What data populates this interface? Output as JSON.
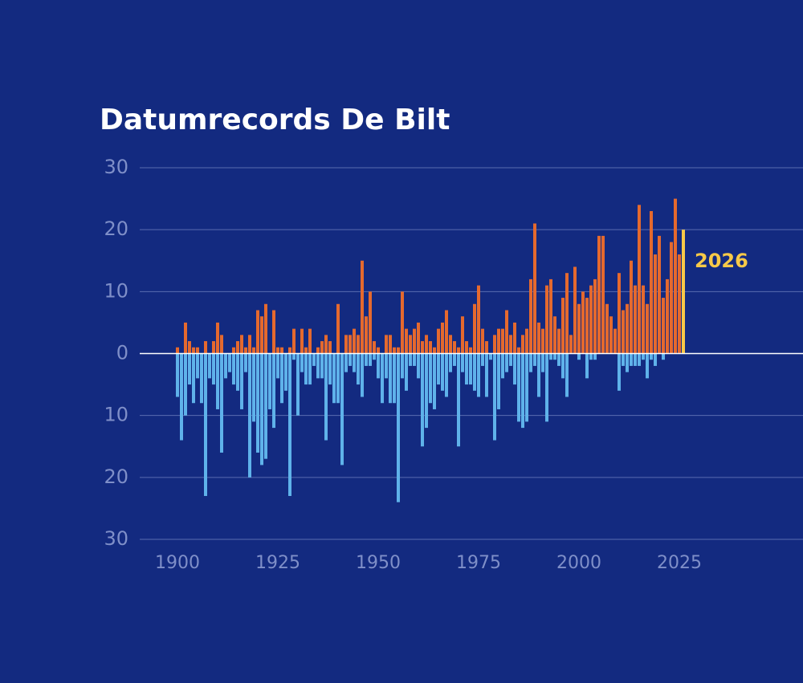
{
  "chart_data": {
    "type": "bar",
    "title": "Datumrecords De Bilt",
    "annotation": "2026",
    "annotation_color": "#f7c948",
    "x": [
      1900,
      1901,
      1902,
      1903,
      1904,
      1905,
      1906,
      1907,
      1908,
      1909,
      1910,
      1911,
      1912,
      1913,
      1914,
      1915,
      1916,
      1917,
      1918,
      1919,
      1920,
      1921,
      1922,
      1923,
      1924,
      1925,
      1926,
      1927,
      1928,
      1929,
      1930,
      1931,
      1932,
      1933,
      1934,
      1935,
      1936,
      1937,
      1938,
      1939,
      1940,
      1941,
      1942,
      1943,
      1944,
      1945,
      1946,
      1947,
      1948,
      1949,
      1950,
      1951,
      1952,
      1953,
      1954,
      1955,
      1956,
      1957,
      1958,
      1959,
      1960,
      1961,
      1962,
      1963,
      1964,
      1965,
      1966,
      1967,
      1968,
      1969,
      1970,
      1971,
      1972,
      1973,
      1974,
      1975,
      1976,
      1977,
      1978,
      1979,
      1980,
      1981,
      1982,
      1983,
      1984,
      1985,
      1986,
      1987,
      1988,
      1989,
      1990,
      1991,
      1992,
      1993,
      1994,
      1995,
      1996,
      1997,
      1998,
      1999,
      2000,
      2001,
      2002,
      2003,
      2004,
      2005,
      2006,
      2007,
      2008,
      2009,
      2010,
      2011,
      2012,
      2013,
      2014,
      2015,
      2016,
      2017,
      2018,
      2019,
      2020,
      2021,
      2022,
      2023,
      2024,
      2025,
      2026
    ],
    "series": [
      {
        "color": "#e5692e",
        "values": [
          1,
          0,
          5,
          2,
          1,
          1,
          0,
          2,
          0,
          2,
          5,
          3,
          0,
          0,
          1,
          2,
          3,
          1,
          3,
          1,
          7,
          6,
          8,
          0,
          7,
          1,
          1,
          0,
          1,
          4,
          0,
          4,
          1,
          4,
          0,
          1,
          2,
          3,
          2,
          0,
          8,
          0,
          3,
          3,
          4,
          3,
          15,
          6,
          10,
          2,
          1,
          0,
          3,
          3,
          1,
          1,
          10,
          4,
          3,
          4,
          5,
          2,
          3,
          2,
          1,
          4,
          5,
          7,
          3,
          2,
          1,
          6,
          2,
          1,
          8,
          11,
          4,
          2,
          0,
          3,
          4,
          4,
          7,
          3,
          5,
          1,
          3,
          4,
          12,
          21,
          5,
          4,
          11,
          12,
          6,
          4,
          9,
          13,
          3,
          14,
          8,
          10,
          9,
          11,
          12,
          19,
          19,
          8,
          6,
          4,
          13,
          7,
          8,
          15,
          11,
          24,
          11,
          8,
          23,
          16,
          19,
          9,
          12,
          18,
          25,
          16,
          null
        ]
      },
      {
        "color": "#5fb2ea",
        "values": [
          -7,
          -14,
          -10,
          -5,
          -8,
          -4,
          -8,
          -23,
          -4,
          -5,
          -9,
          -16,
          -4,
          -3,
          -5,
          -6,
          -9,
          -3,
          -20,
          -11,
          -16,
          -18,
          -17,
          -9,
          -12,
          -4,
          -8,
          -6,
          -23,
          -1,
          -10,
          -3,
          -5,
          -5,
          -2,
          -4,
          -4,
          -14,
          -5,
          -8,
          -8,
          -18,
          -3,
          -2,
          -3,
          -5,
          -7,
          -2,
          -2,
          -1,
          -4,
          -8,
          -4,
          -8,
          -8,
          -24,
          -4,
          -6,
          -2,
          -2,
          -4,
          -15,
          -12,
          -8,
          -9,
          -5,
          -6,
          -7,
          -3,
          -2,
          -15,
          -3,
          -5,
          -5,
          -6,
          -7,
          -2,
          -7,
          -1,
          -14,
          -9,
          -4,
          -3,
          -2,
          -5,
          -11,
          -12,
          -11,
          -3,
          -2,
          -7,
          -3,
          -11,
          -1,
          -1,
          -2,
          -4,
          -7,
          0,
          0,
          -1,
          0,
          -4,
          -1,
          -1,
          0,
          0,
          0,
          0,
          0,
          -6,
          -2,
          -3,
          -2,
          -2,
          -2,
          -1,
          -4,
          -1,
          -2,
          0,
          -1,
          0,
          0,
          0,
          0,
          null
        ]
      },
      {
        "color": "#f7c948",
        "values": [
          null,
          null,
          null,
          null,
          null,
          null,
          null,
          null,
          null,
          null,
          null,
          null,
          null,
          null,
          null,
          null,
          null,
          null,
          null,
          null,
          null,
          null,
          null,
          null,
          null,
          null,
          null,
          null,
          null,
          null,
          null,
          null,
          null,
          null,
          null,
          null,
          null,
          null,
          null,
          null,
          null,
          null,
          null,
          null,
          null,
          null,
          null,
          null,
          null,
          null,
          null,
          null,
          null,
          null,
          null,
          null,
          null,
          null,
          null,
          null,
          null,
          null,
          null,
          null,
          null,
          null,
          null,
          null,
          null,
          null,
          null,
          null,
          null,
          null,
          null,
          null,
          null,
          null,
          null,
          null,
          null,
          null,
          null,
          null,
          null,
          null,
          null,
          null,
          null,
          null,
          null,
          null,
          null,
          null,
          null,
          null,
          null,
          null,
          null,
          null,
          null,
          null,
          null,
          null,
          null,
          null,
          null,
          null,
          null,
          null,
          null,
          null,
          null,
          null,
          null,
          null,
          null,
          null,
          null,
          null,
          null,
          null,
          null,
          null,
          null,
          null,
          20
        ]
      }
    ],
    "xlim": [
      1890.6,
      2055.8
    ],
    "xticks": [
      1900,
      1925,
      1950,
      1975,
      2000,
      2025
    ],
    "ylim": [
      -30,
      30
    ],
    "yticks": [
      30,
      20,
      10,
      0,
      {
        "value": -10,
        "label": "10"
      },
      {
        "value": -20,
        "label": "20"
      },
      {
        "value": -30,
        "label": "30"
      }
    ],
    "grid": true
  }
}
